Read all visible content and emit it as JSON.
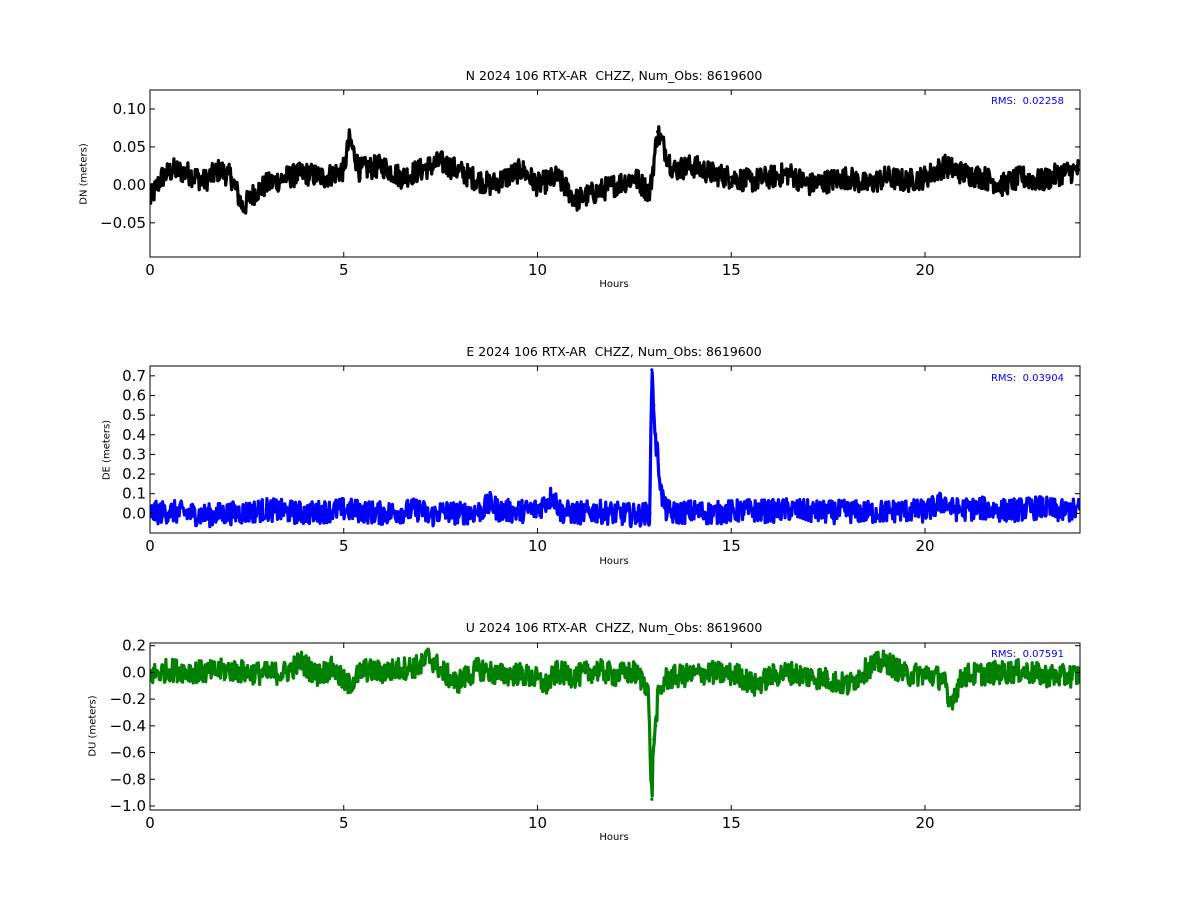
{
  "chart_data": [
    {
      "type": "line",
      "title": "N 2024 106 RTX-AR  CHZZ, Num_Obs: 8619600",
      "xlabel": "Hours",
      "ylabel": "DN (meters)",
      "xlim": [
        0,
        24
      ],
      "ylim": [
        -0.095,
        0.125
      ],
      "x_ticks": [
        0,
        5,
        10,
        15,
        20
      ],
      "y_ticks": [
        -0.05,
        0.0,
        0.05,
        0.1
      ],
      "y_tick_labels": [
        "−0.05",
        "0.00",
        "0.05",
        "0.10"
      ],
      "color": "#000000",
      "annotation": "RMS:  0.02258",
      "annotation_color": "#0000ff",
      "series": [
        {
          "x": [
            0,
            0.3,
            0.6,
            1.0,
            1.4,
            1.8,
            2.1,
            2.4,
            2.7,
            3.0,
            3.5,
            4.0,
            4.5,
            5.0,
            5.15,
            5.4,
            6.0,
            6.5,
            7.0,
            7.5,
            7.9,
            8.3,
            8.8,
            9.2,
            9.6,
            10.0,
            10.5,
            11.0,
            11.5,
            12.0,
            12.5,
            12.9,
            13.1,
            13.5,
            14.0,
            14.5,
            15.0,
            15.5,
            16.0,
            16.5,
            17.0,
            17.5,
            18.0,
            18.5,
            19.0,
            19.5,
            20.0,
            20.5,
            21.0,
            21.5,
            22.0,
            22.5,
            23.0,
            23.5,
            24.0
          ],
          "y": [
            -0.02,
            0.01,
            0.02,
            0.015,
            0.005,
            0.02,
            0.01,
            -0.03,
            -0.01,
            0.0,
            0.01,
            0.015,
            0.01,
            0.02,
            0.06,
            0.02,
            0.025,
            0.01,
            0.02,
            0.03,
            0.02,
            0.01,
            0.0,
            0.01,
            0.02,
            0.0,
            0.01,
            -0.02,
            -0.01,
            0.0,
            0.01,
            -0.01,
            0.07,
            0.02,
            0.025,
            0.015,
            0.01,
            0.005,
            0.01,
            0.015,
            0.0,
            0.005,
            0.01,
            0.0,
            0.01,
            0.005,
            0.01,
            0.025,
            0.015,
            0.01,
            0.0,
            0.01,
            0.005,
            0.015,
            0.02
          ]
        }
      ]
    },
    {
      "type": "line",
      "title": "E 2024 106 RTX-AR  CHZZ, Num_Obs: 8619600",
      "xlabel": "Hours",
      "ylabel": "DE (meters)",
      "xlim": [
        0,
        24
      ],
      "ylim": [
        -0.1,
        0.75
      ],
      "x_ticks": [
        0,
        5,
        10,
        15,
        20
      ],
      "y_ticks": [
        0.0,
        0.1,
        0.2,
        0.3,
        0.4,
        0.5,
        0.6,
        0.7
      ],
      "y_tick_labels": [
        "0.0",
        "0.1",
        "0.2",
        "0.3",
        "0.4",
        "0.5",
        "0.6",
        "0.7"
      ],
      "color": "#0000ff",
      "annotation": "RMS:  0.03904",
      "annotation_color": "#0000ff",
      "series": [
        {
          "x": [
            0,
            0.5,
            1.0,
            1.5,
            2.0,
            2.5,
            3.0,
            3.5,
            4.0,
            4.5,
            5.0,
            5.5,
            6.0,
            6.5,
            7.0,
            7.2,
            7.5,
            8.0,
            8.5,
            8.8,
            9.0,
            9.5,
            10.0,
            10.4,
            10.6,
            11.0,
            11.5,
            12.0,
            12.5,
            12.9,
            12.95,
            13.0,
            13.05,
            13.1,
            13.2,
            13.3,
            13.5,
            14.0,
            14.5,
            15.0,
            15.5,
            16.0,
            16.5,
            17.0,
            17.5,
            18.0,
            18.5,
            19.0,
            19.5,
            20.0,
            20.5,
            20.7,
            21.0,
            21.5,
            22.0,
            22.5,
            23.0,
            23.5,
            24.0
          ],
          "y": [
            0.0,
            0.01,
            0.0,
            -0.01,
            0.0,
            0.005,
            0.02,
            0.01,
            0.0,
            0.01,
            0.02,
            0.01,
            0.0,
            0.01,
            0.02,
            -0.02,
            0.01,
            0.0,
            0.01,
            0.05,
            0.015,
            0.01,
            0.02,
            0.09,
            0.01,
            0.0,
            0.01,
            0.0,
            -0.01,
            0.0,
            0.73,
            0.55,
            0.35,
            0.3,
            0.1,
            0.02,
            0.0,
            0.01,
            0.0,
            0.01,
            0.015,
            0.01,
            0.02,
            0.01,
            0.005,
            0.01,
            0.005,
            0.01,
            0.015,
            0.01,
            0.06,
            0.02,
            0.02,
            0.025,
            0.015,
            0.02,
            0.03,
            0.01,
            0.02
          ]
        }
      ]
    },
    {
      "type": "line",
      "title": "U 2024 106 RTX-AR  CHZZ, Num_Obs: 8619600",
      "xlabel": "Hours",
      "ylabel": "DU (meters)",
      "xlim": [
        0,
        24
      ],
      "ylim": [
        -1.03,
        0.22
      ],
      "x_ticks": [
        0,
        5,
        10,
        15,
        20
      ],
      "y_ticks": [
        -1.0,
        -0.8,
        -0.6,
        -0.4,
        -0.2,
        0.0,
        0.2
      ],
      "y_tick_labels": [
        "−1.0",
        "−0.8",
        "−0.6",
        "−0.4",
        "−0.2",
        "0.0",
        "0.2"
      ],
      "color": "#008000",
      "annotation": "RMS:  0.07591",
      "annotation_color": "#0000ff",
      "series": [
        {
          "x": [
            0,
            0.5,
            1.0,
            1.5,
            2.0,
            2.5,
            3.0,
            3.5,
            3.9,
            4.3,
            4.7,
            5.1,
            5.5,
            6.0,
            6.5,
            7.0,
            7.2,
            7.5,
            7.9,
            8.5,
            9.0,
            9.5,
            10.0,
            10.2,
            10.5,
            11.0,
            11.5,
            12.0,
            12.5,
            12.85,
            12.95,
            13.0,
            13.05,
            13.1,
            13.3,
            13.6,
            14.0,
            14.4,
            14.8,
            15.2,
            15.6,
            16.0,
            16.5,
            17.0,
            17.5,
            18.0,
            18.6,
            19.0,
            19.5,
            20.0,
            20.5,
            20.6,
            21.0,
            21.5,
            22.0,
            22.5,
            23.0,
            23.5,
            24.0
          ],
          "y": [
            -0.02,
            0.02,
            0.01,
            0.0,
            0.02,
            0.0,
            -0.01,
            0.0,
            0.08,
            -0.02,
            0.03,
            -0.1,
            0.02,
            0.0,
            0.03,
            0.05,
            0.12,
            0.02,
            -0.08,
            0.03,
            -0.02,
            -0.01,
            -0.05,
            -0.1,
            0.0,
            -0.03,
            0.02,
            -0.02,
            0.0,
            -0.1,
            -0.95,
            -0.5,
            -0.4,
            -0.2,
            -0.05,
            -0.03,
            -0.02,
            0.0,
            -0.01,
            -0.02,
            -0.1,
            -0.03,
            0.0,
            -0.03,
            -0.05,
            -0.1,
            0.05,
            0.08,
            -0.02,
            -0.01,
            -0.05,
            -0.25,
            -0.02,
            -0.01,
            0.0,
            0.01,
            -0.02,
            -0.03,
            -0.02
          ]
        }
      ]
    }
  ]
}
